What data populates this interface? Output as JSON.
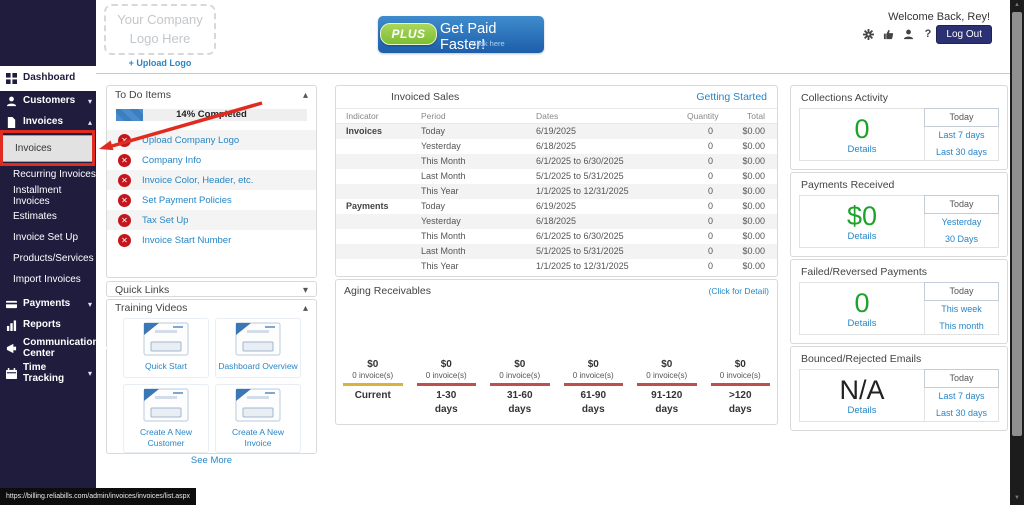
{
  "colors": {
    "accent_blue": "#2786c7",
    "green": "#1ea32a",
    "annotation_red": "#e02b20",
    "sidebar_bg": "#201c3e",
    "banner_blue": "#1d5eaa",
    "banner_blue_light": "#3f8ccd",
    "plus_green": "#7cbe33",
    "logout_navy": "#2b3173",
    "progress_blue": "#3c7fc0"
  },
  "header": {
    "logo_line1": "Your Company",
    "logo_line2": "Logo Here",
    "upload_logo_label": "+ Upload Logo",
    "banner": {
      "badge": "PLUS",
      "title": "Get Paid Faster!",
      "subtitle": "Click here"
    },
    "welcome_text": "Welcome Back, Rey!",
    "icon_names": [
      "gear-icon",
      "thumbs-up-icon",
      "user-icon",
      "help-icon"
    ],
    "logout_label": "Log Out"
  },
  "sidebar": {
    "items_top": [
      {
        "name": "sidebar-item-dashboard",
        "label": "Dashboard",
        "icon": "dashboard-icon",
        "active": true
      },
      {
        "name": "sidebar-item-customers",
        "label": "Customers",
        "icon": "customers-icon",
        "chevron": "down"
      },
      {
        "name": "sidebar-item-invoices",
        "label": "Invoices",
        "icon": "invoices-icon",
        "chevron": "up"
      }
    ],
    "invoices_submenu": [
      {
        "name": "sidebar-subitem-invoices",
        "label": "Invoices",
        "active": true
      },
      {
        "name": "sidebar-subitem-recurring-invoices",
        "label": "Recurring Invoices"
      },
      {
        "name": "sidebar-subitem-installment-invoices",
        "label": "Installment Invoices"
      },
      {
        "name": "sidebar-subitem-estimates",
        "label": "Estimates"
      },
      {
        "name": "sidebar-subitem-invoice-set-up",
        "label": "Invoice Set Up"
      },
      {
        "name": "sidebar-subitem-products-services",
        "label": "Products/Services"
      },
      {
        "name": "sidebar-subitem-import-invoices",
        "label": "Import Invoices"
      }
    ],
    "items_bottom": [
      {
        "name": "sidebar-item-payments",
        "label": "Payments",
        "icon": "payments-icon",
        "chevron": "down"
      },
      {
        "name": "sidebar-item-reports",
        "label": "Reports",
        "icon": "reports-icon"
      },
      {
        "name": "sidebar-item-communication-center",
        "label": "Communication Center",
        "icon": "communication-icon",
        "chevron": "down"
      },
      {
        "name": "sidebar-item-time-tracking",
        "label": "Time Tracking",
        "icon": "time-tracking-icon",
        "chevron": "down"
      }
    ]
  },
  "todo": {
    "title": "To Do Items",
    "progress_percent": 14,
    "progress_label": "14% Completed",
    "items": [
      "Upload Company Logo",
      "Company Info",
      "Invoice Color, Header, etc.",
      "Set Payment Policies",
      "Tax Set Up",
      "Invoice Start Number"
    ]
  },
  "quick_links": {
    "title": "Quick Links"
  },
  "training_videos": {
    "title": "Training Videos",
    "items": [
      {
        "name": "video-quick-start",
        "label": "Quick Start"
      },
      {
        "name": "video-dashboard-overview",
        "label": "Dashboard Overview"
      },
      {
        "name": "video-create-a-new-customer",
        "label": "Create A New Customer"
      },
      {
        "name": "video-create-a-new-invoice",
        "label": "Create A New Invoice"
      }
    ],
    "see_more_label": "See More"
  },
  "invoiced_sales": {
    "title": "Invoiced Sales",
    "link": "Getting Started",
    "columns": [
      "Indicator",
      "Period",
      "Dates",
      "Quantity",
      "Total"
    ],
    "rows": [
      {
        "indicator": "Invoices",
        "period": "Today",
        "dates": "6/19/2025",
        "quantity": "0",
        "total": "$0.00"
      },
      {
        "indicator": "",
        "period": "Yesterday",
        "dates": "6/18/2025",
        "quantity": "0",
        "total": "$0.00"
      },
      {
        "indicator": "",
        "period": "This Month",
        "dates": "6/1/2025 to 6/30/2025",
        "quantity": "0",
        "total": "$0.00"
      },
      {
        "indicator": "",
        "period": "Last Month",
        "dates": "5/1/2025 to 5/31/2025",
        "quantity": "0",
        "total": "$0.00"
      },
      {
        "indicator": "",
        "period": "This Year",
        "dates": "1/1/2025 to 12/31/2025",
        "quantity": "0",
        "total": "$0.00"
      },
      {
        "indicator": "Payments",
        "period": "Today",
        "dates": "6/19/2025",
        "quantity": "0",
        "total": "$0.00"
      },
      {
        "indicator": "",
        "period": "Yesterday",
        "dates": "6/18/2025",
        "quantity": "0",
        "total": "$0.00"
      },
      {
        "indicator": "",
        "period": "This Month",
        "dates": "6/1/2025 to 6/30/2025",
        "quantity": "0",
        "total": "$0.00"
      },
      {
        "indicator": "",
        "period": "Last Month",
        "dates": "5/1/2025 to 5/31/2025",
        "quantity": "0",
        "total": "$0.00"
      },
      {
        "indicator": "",
        "period": "This Year",
        "dates": "1/1/2025 to 12/31/2025",
        "quantity": "0",
        "total": "$0.00"
      }
    ]
  },
  "aging_receivables": {
    "title": "Aging Receivables",
    "link": "(Click for Detail)",
    "buckets": [
      {
        "amount": "$0",
        "count": "0 invoice(s)",
        "label_line1": "Current",
        "label_line2": "",
        "bar_color": "#d9b43c"
      },
      {
        "amount": "$0",
        "count": "0 invoice(s)",
        "label_line1": "1-30",
        "label_line2": "days",
        "bar_color": "#bf4f4d"
      },
      {
        "amount": "$0",
        "count": "0 invoice(s)",
        "label_line1": "31-60",
        "label_line2": "days",
        "bar_color": "#bf4f4d"
      },
      {
        "amount": "$0",
        "count": "0 invoice(s)",
        "label_line1": "61-90",
        "label_line2": "days",
        "bar_color": "#bf4f4d"
      },
      {
        "amount": "$0",
        "count": "0 invoice(s)",
        "label_line1": "91-120",
        "label_line2": "days",
        "bar_color": "#bf4f4d"
      },
      {
        "amount": "$0",
        "count": "0 invoice(s)",
        "label_line1": ">120",
        "label_line2": "days",
        "bar_color": "#bf4f4d"
      }
    ]
  },
  "stat_panels": [
    {
      "name": "collections-activity-panel",
      "title": "Collections Activity",
      "value": "0",
      "value_color": "#1ea32a",
      "details_label": "Details",
      "periods": [
        "Today",
        "Last 7 days",
        "Last 30 days"
      ]
    },
    {
      "name": "payments-received-panel",
      "title": "Payments Received",
      "value": "$0",
      "value_color": "#1ea32a",
      "details_label": "Details",
      "periods": [
        "Today",
        "Yesterday",
        "30 Days"
      ]
    },
    {
      "name": "failed-reversed-payments-panel",
      "title": "Failed/Reversed Payments",
      "value": "0",
      "value_color": "#1ea32a",
      "details_label": "Details",
      "periods": [
        "Today",
        "This week",
        "This month"
      ]
    },
    {
      "name": "bounced-rejected-emails-panel",
      "title": "Bounced/Rejected Emails",
      "value": "N/A",
      "value_color": "#222222",
      "details_label": "Details",
      "periods": [
        "Today",
        "Last 7 days",
        "Last 30 days"
      ]
    }
  ],
  "status_bar": {
    "url": "https://billing.reliabills.com/admin/invoices/invoices/list.aspx"
  }
}
